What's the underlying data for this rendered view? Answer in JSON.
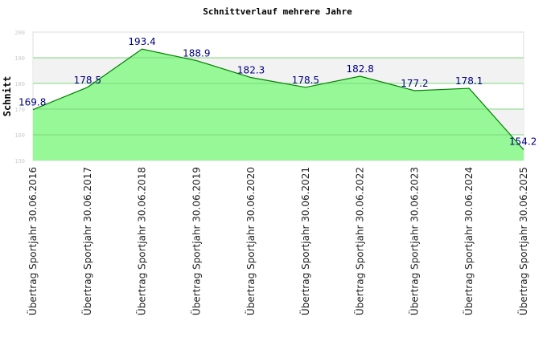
{
  "chart_data": {
    "type": "area",
    "title": "Schnittverlauf mehrere Jahre",
    "ylabel": "Schnitt",
    "xlabel": "",
    "ylim": [
      150,
      200
    ],
    "yticks": [
      "150",
      "160",
      "170",
      "180",
      "190",
      "200"
    ],
    "categories": [
      "Übertrag Sportjahr 30.06.2016",
      "Übertrag Sportjahr 30.06.2017",
      "Übertrag Sportjahr 30.06.2018",
      "Übertrag Sportjahr 30.06.2019",
      "Übertrag Sportjahr 30.06.2020",
      "Übertrag Sportjahr 30.06.2021",
      "Übertrag Sportjahr 30.06.2022",
      "Übertrag Sportjahr 30.06.2023",
      "Übertrag Sportjahr 30.06.2024",
      "Übertrag Sportjahr 30.06.2025"
    ],
    "values": [
      169.8,
      178.5,
      193.4,
      188.9,
      182.3,
      178.5,
      182.8,
      177.2,
      178.1,
      154.2
    ],
    "value_labels": [
      "169.8",
      "178.5",
      "193.4",
      "188.9",
      "182.3",
      "178.5",
      "182.8",
      "177.2",
      "178.1",
      "154.2"
    ],
    "colors": {
      "fill": "#90f890",
      "line": "#008000",
      "label": "#000080",
      "band": "#f2f2f2"
    }
  }
}
